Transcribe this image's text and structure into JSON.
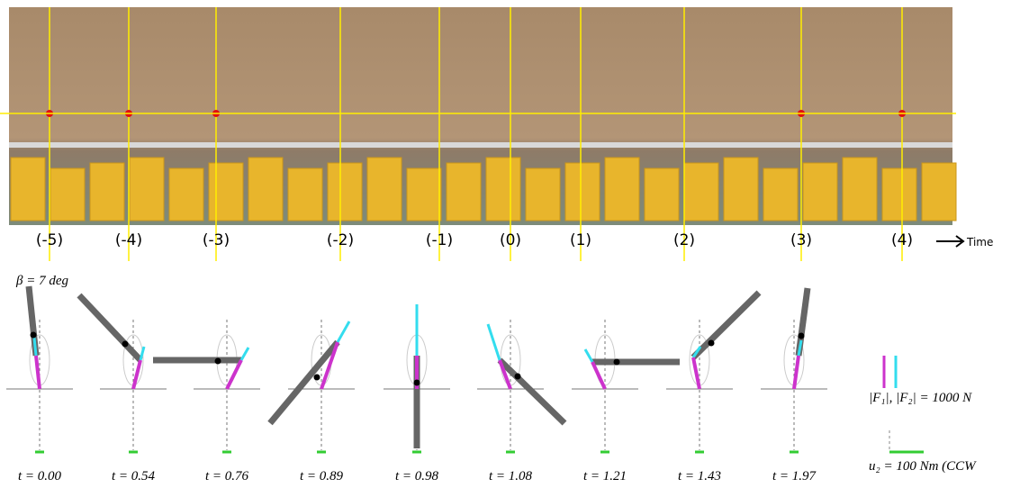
{
  "photo_labels": [
    "(-5)",
    "(-4)",
    "(-3)",
    "(-2)",
    "(-1)",
    "(0)",
    "(1)",
    "(2)",
    "(3)",
    "(4)"
  ],
  "time_label": "Time",
  "beta_label": "β = 7 deg",
  "frame_labels": [
    "t = 0.00",
    "t = 0.54",
    "t = 0.76",
    "t = 0.89",
    "t = 0.98",
    "t = 1.08",
    "t = 1.21",
    "t = 1.43",
    "t = 1.97"
  ],
  "force_legend": "|F₁|, |F₂| = 1000 N",
  "torque_legend": "u₂ = 100 Nm (CCW"
}
